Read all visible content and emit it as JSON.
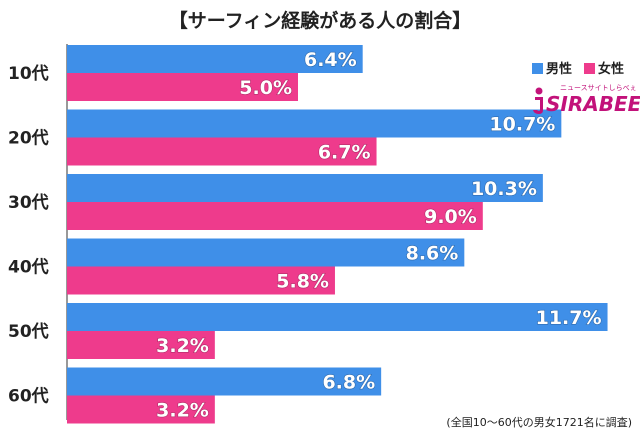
{
  "chart_data": {
    "type": "bar",
    "orientation": "horizontal",
    "title": "【サーフィン経験がある人の割合】",
    "categories": [
      "10代",
      "20代",
      "30代",
      "40代",
      "50代",
      "60代"
    ],
    "series": [
      {
        "name": "男性",
        "color": "#3f8fe8",
        "values": [
          6.4,
          10.7,
          10.3,
          8.6,
          11.7,
          6.8
        ]
      },
      {
        "name": "女性",
        "color": "#ee3b8c",
        "values": [
          5.0,
          6.7,
          9.0,
          5.8,
          3.2,
          3.2
        ]
      }
    ],
    "value_suffix": "%",
    "value_decimals": 1,
    "xlim": [
      0,
      13
    ],
    "legend_position": "top-right",
    "note": "(全国10〜60代の男女1721名に調査)",
    "brand": {
      "name": "SIRABEE",
      "tagline": "ニュースサイトしらべぇ"
    }
  }
}
